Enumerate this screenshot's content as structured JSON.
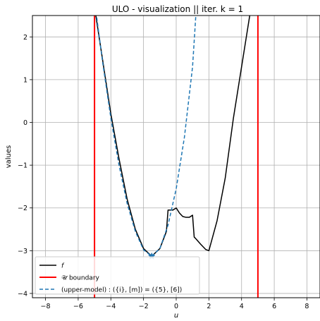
{
  "chart_data": {
    "type": "line",
    "title": "ULO - visualization || iter. k = 1",
    "xlabel": "u",
    "ylabel": "values",
    "xlim": [
      -8.8,
      8.8
    ],
    "ylim": [
      -4.1,
      2.5
    ],
    "xticks": [
      -8,
      -6,
      -4,
      -2,
      0,
      2,
      4,
      6,
      8
    ],
    "yticks": [
      -4,
      -3,
      -2,
      -1,
      0,
      1,
      2
    ],
    "grid": true,
    "legend_position": "lower-left",
    "series": [
      {
        "name": "f",
        "color": "#000000",
        "style": "solid",
        "x": [
          -5.2,
          -5.0,
          -4.5,
          -4.0,
          -3.5,
          -3.0,
          -2.5,
          -2.0,
          -1.5,
          -1.0,
          -0.6,
          -0.5,
          -0.4,
          -0.2,
          0.0,
          0.2,
          0.4,
          0.6,
          0.8,
          1.0,
          1.1,
          1.2,
          1.5,
          1.8,
          2.0,
          2.5,
          3.0,
          3.5,
          4.0,
          4.5,
          4.7
        ],
        "y": [
          3.3,
          2.7,
          1.45,
          0.2,
          -0.85,
          -1.8,
          -2.5,
          -2.95,
          -3.13,
          -2.95,
          -2.55,
          -2.05,
          -2.05,
          -2.05,
          -2.0,
          -2.12,
          -2.2,
          -2.22,
          -2.22,
          -2.17,
          -2.68,
          -2.72,
          -2.85,
          -2.97,
          -3.0,
          -2.3,
          -1.3,
          0.1,
          1.3,
          2.5,
          3.1
        ]
      },
      {
        "name": "𝒰 boundary",
        "color": "#ff0000",
        "style": "solid",
        "vlines": [
          -5,
          5
        ]
      },
      {
        "name": "(upper-model) : ({i}, [m]) = ({5}, [6])",
        "color": "#1f77b4",
        "style": "dashed",
        "x": [
          -5.0,
          -4.5,
          -4.0,
          -3.5,
          -3.0,
          -2.5,
          -2.0,
          -1.5,
          -1.0,
          -0.5,
          0.0,
          0.5,
          1.0,
          1.2
        ],
        "y": [
          2.85,
          1.4,
          0.1,
          -1.0,
          -1.9,
          -2.55,
          -2.98,
          -3.13,
          -2.95,
          -2.4,
          -1.55,
          -0.35,
          1.3,
          2.5
        ]
      }
    ],
    "markers": [
      {
        "name": "current point",
        "x": -1.5,
        "y": -3.13,
        "color": "#1f77b4",
        "symbol": "star"
      }
    ]
  }
}
